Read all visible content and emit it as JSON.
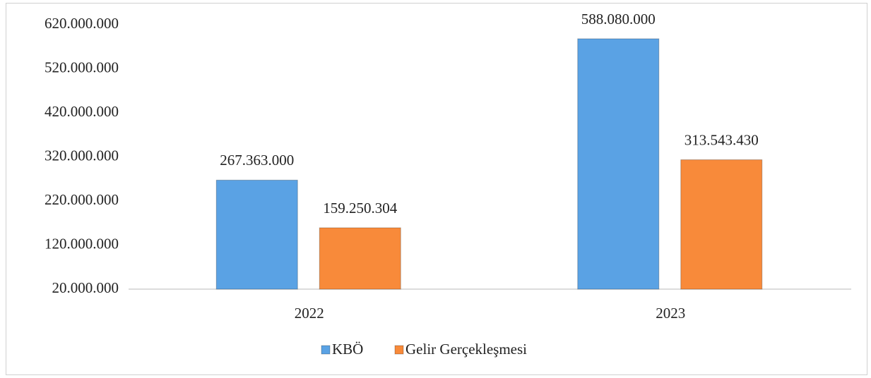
{
  "chart_data": {
    "type": "bar",
    "categories": [
      "2022",
      "2023"
    ],
    "series": [
      {
        "name": "KBÖ",
        "color": "#5aa2e4",
        "values": [
          267363000,
          588080000
        ],
        "value_labels": [
          "267.363.000",
          "588.080.000"
        ]
      },
      {
        "name": "Gelir Gerçekleşmesi",
        "color": "#f88a3a",
        "values": [
          159250304,
          313543430
        ],
        "value_labels": [
          "159.250.304",
          "313.543.430"
        ]
      }
    ],
    "ylim": [
      20000000,
      620000000
    ],
    "yticks": [
      {
        "value": 20000000,
        "label": "20.000.000"
      },
      {
        "value": 120000000,
        "label": "120.000.000"
      },
      {
        "value": 220000000,
        "label": "220.000.000"
      },
      {
        "value": 320000000,
        "label": "320.000.000"
      },
      {
        "value": 420000000,
        "label": "420.000.000"
      },
      {
        "value": 520000000,
        "label": "520.000.000"
      },
      {
        "value": 620000000,
        "label": "620.000.000"
      }
    ],
    "grid": false,
    "legend": "bottom"
  }
}
